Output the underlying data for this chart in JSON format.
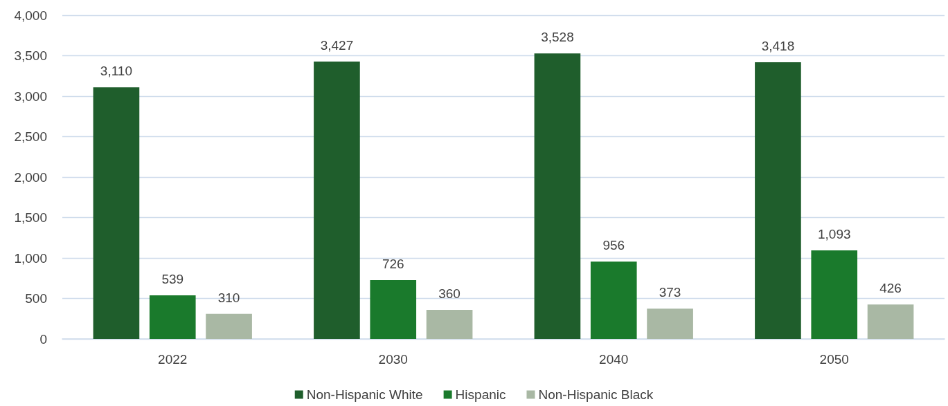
{
  "chart_data": {
    "type": "bar",
    "categories": [
      "2022",
      "2030",
      "2040",
      "2050"
    ],
    "series": [
      {
        "name": "Non-Hispanic White",
        "color": "#1f5e2c",
        "values": [
          3110,
          3427,
          3528,
          3418
        ],
        "value_labels": [
          "3,110",
          "3,427",
          "3,528",
          "3,418"
        ]
      },
      {
        "name": "Hispanic",
        "color": "#1a7a2c",
        "values": [
          539,
          726,
          956,
          1093
        ],
        "value_labels": [
          "539",
          "726",
          "956",
          "1,093"
        ]
      },
      {
        "name": "Non-Hispanic Black",
        "color": "#a9b8a4",
        "values": [
          310,
          360,
          373,
          426
        ],
        "value_labels": [
          "310",
          "360",
          "373",
          "426"
        ]
      }
    ],
    "ylim": [
      0,
      4000
    ],
    "yticks": [
      0,
      500,
      {
        "value": 1000,
        "label": "1,000"
      },
      {
        "value": 1500,
        "label": "1,500"
      },
      {
        "value": 2000,
        "label": "2,000"
      },
      {
        "value": 2500,
        "label": "2,500"
      },
      {
        "value": 3000,
        "label": "3,000"
      },
      {
        "value": 3500,
        "label": "3,500"
      },
      {
        "value": 4000,
        "label": "4,000"
      }
    ],
    "grid": "y",
    "legend": "bottom"
  }
}
